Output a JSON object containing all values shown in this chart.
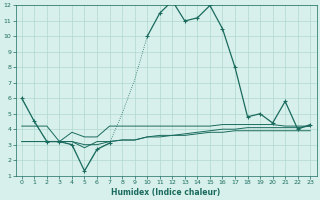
{
  "xlabel": "Humidex (Indice chaleur)",
  "x": [
    0,
    1,
    2,
    3,
    4,
    5,
    6,
    7,
    8,
    9,
    10,
    11,
    12,
    13,
    14,
    15,
    16,
    17,
    18,
    19,
    20,
    21,
    22,
    23
  ],
  "line1": [
    6.0,
    4.5,
    3.2,
    3.2,
    3.0,
    1.3,
    2.7,
    3.1,
    5.0,
    7.2,
    10.0,
    11.5,
    12.3,
    11.0,
    11.2,
    12.0,
    10.5,
    8.0,
    4.8,
    5.0,
    4.4,
    5.8,
    4.0,
    4.3
  ],
  "line1_dotted_x": [
    0,
    1,
    2,
    3,
    4,
    5,
    6,
    7,
    8,
    9,
    10
  ],
  "line1_dotted_y": [
    6.0,
    4.5,
    3.2,
    3.2,
    3.0,
    1.3,
    2.7,
    3.1,
    5.0,
    7.2,
    10.0
  ],
  "line2": [
    4.2,
    4.2,
    4.2,
    3.2,
    3.8,
    3.5,
    3.5,
    4.2,
    4.2,
    4.2,
    4.2,
    4.2,
    4.2,
    4.2,
    4.2,
    4.2,
    4.3,
    4.3,
    4.3,
    4.3,
    4.3,
    4.2,
    4.2,
    4.2
  ],
  "line3": [
    3.2,
    3.2,
    3.2,
    3.2,
    3.2,
    3.0,
    3.0,
    3.2,
    3.3,
    3.3,
    3.5,
    3.5,
    3.6,
    3.6,
    3.7,
    3.8,
    3.8,
    3.9,
    3.9,
    3.9,
    3.9,
    3.9,
    3.9,
    3.9
  ],
  "line4": [
    3.2,
    3.2,
    3.2,
    3.2,
    3.2,
    2.8,
    3.2,
    3.2,
    3.3,
    3.3,
    3.5,
    3.6,
    3.6,
    3.7,
    3.8,
    3.9,
    4.0,
    4.0,
    4.1,
    4.1,
    4.1,
    4.1,
    4.1,
    4.2
  ],
  "line_color": "#1a6b5e",
  "bg_color": "#d8f0ec",
  "grid_color": "#b0d8d0",
  "ylim": [
    1,
    12
  ],
  "yticks": [
    1,
    2,
    3,
    4,
    5,
    6,
    7,
    8,
    9,
    10,
    11,
    12
  ],
  "xticks": [
    0,
    1,
    2,
    3,
    4,
    5,
    6,
    7,
    8,
    9,
    10,
    11,
    12,
    13,
    14,
    15,
    16,
    17,
    18,
    19,
    20,
    21,
    22,
    23
  ]
}
